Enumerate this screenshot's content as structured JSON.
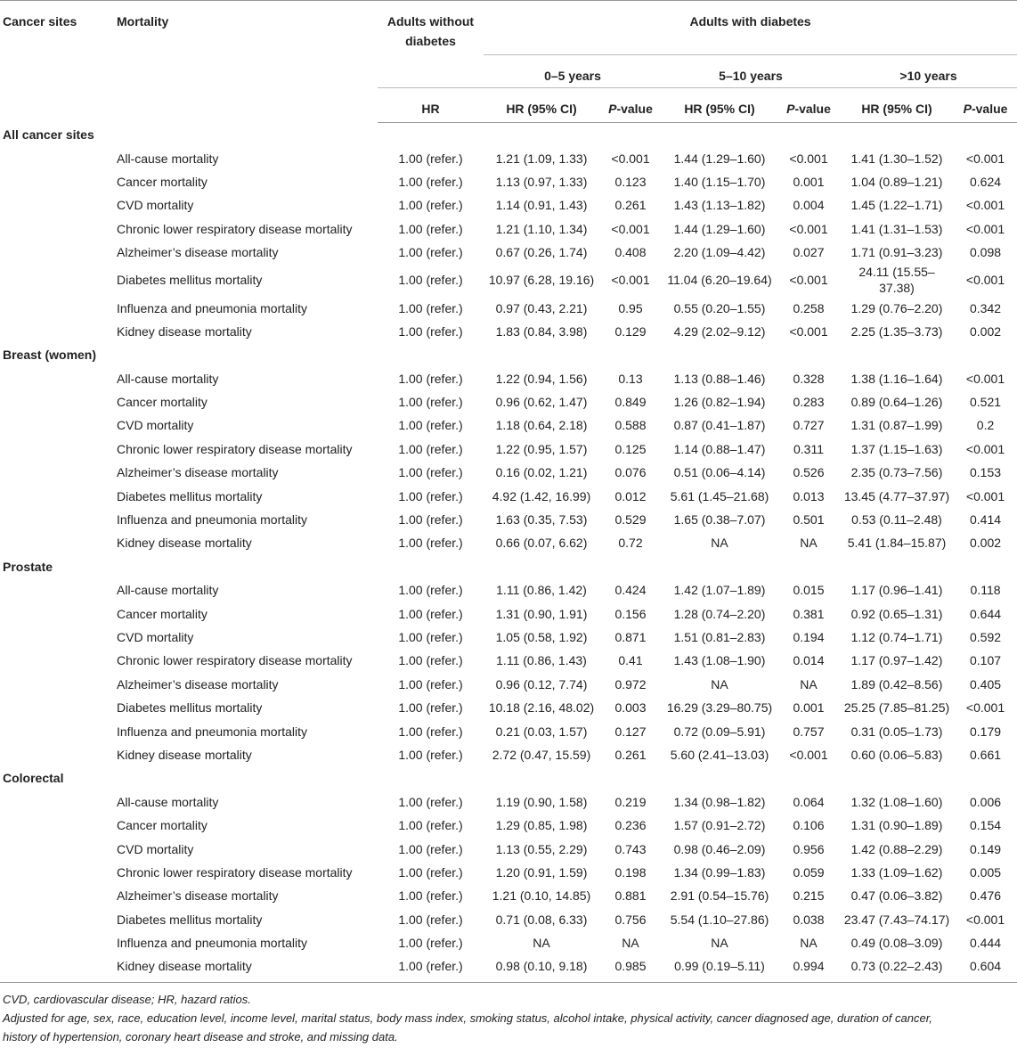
{
  "header": {
    "cancer_sites": "Cancer sites",
    "mortality": "Mortality",
    "without": "Adults without diabetes",
    "with": "Adults with diabetes",
    "periods": [
      "0–5 years",
      "5–10 years",
      ">10 years"
    ],
    "hr": "HR",
    "subcols": [
      "HR (95% CI)",
      "P-value",
      "HR (95% CI)",
      "P-value",
      "HR (95% CI)",
      "P-value"
    ]
  },
  "sections": [
    {
      "title": "All cancer sites",
      "rows": [
        [
          "All-cause mortality",
          "1.00 (refer.)",
          "1.21 (1.09, 1.33)",
          "<0.001",
          "1.44 (1.29–1.60)",
          "<0.001",
          "1.41 (1.30–1.52)",
          "<0.001"
        ],
        [
          "Cancer mortality",
          "1.00 (refer.)",
          "1.13 (0.97, 1.33)",
          "0.123",
          "1.40 (1.15–1.70)",
          "0.001",
          "1.04 (0.89–1.21)",
          "0.624"
        ],
        [
          "CVD mortality",
          "1.00 (refer.)",
          "1.14 (0.91, 1.43)",
          "0.261",
          "1.43 (1.13–1.82)",
          "0.004",
          "1.45 (1.22–1.71)",
          "<0.001"
        ],
        [
          "Chronic lower respiratory disease mortality",
          "1.00 (refer.)",
          "1.21 (1.10, 1.34)",
          "<0.001",
          "1.44 (1.29–1.60)",
          "<0.001",
          "1.41 (1.31–1.53)",
          "<0.001"
        ],
        [
          "Alzheimer’s disease mortality",
          "1.00 (refer.)",
          "0.67 (0.26, 1.74)",
          "0.408",
          "2.20 (1.09–4.42)",
          "0.027",
          "1.71 (0.91–3.23)",
          "0.098"
        ],
        [
          "Diabetes mellitus mortality",
          "1.00 (refer.)",
          "10.97 (6.28, 19.16)",
          "<0.001",
          "11.04 (6.20–19.64)",
          "<0.001",
          "24.11 (15.55–37.38)",
          "<0.001"
        ],
        [
          "Influenza and pneumonia mortality",
          "1.00 (refer.)",
          "0.97 (0.43, 2.21)",
          "0.95",
          "0.55 (0.20–1.55)",
          "0.258",
          "1.29 (0.76–2.20)",
          "0.342"
        ],
        [
          "Kidney disease mortality",
          "1.00 (refer.)",
          "1.83 (0.84, 3.98)",
          "0.129",
          "4.29 (2.02–9.12)",
          "<0.001",
          "2.25 (1.35–3.73)",
          "0.002"
        ]
      ]
    },
    {
      "title": "Breast (women)",
      "rows": [
        [
          "All-cause mortality",
          "1.00 (refer.)",
          "1.22 (0.94, 1.56)",
          "0.13",
          "1.13 (0.88–1.46)",
          "0.328",
          "1.38 (1.16–1.64)",
          "<0.001"
        ],
        [
          "Cancer mortality",
          "1.00 (refer.)",
          "0.96 (0.62, 1.47)",
          "0.849",
          "1.26 (0.82–1.94)",
          "0.283",
          "0.89 (0.64–1.26)",
          "0.521"
        ],
        [
          "CVD mortality",
          "1.00 (refer.)",
          "1.18 (0.64, 2.18)",
          "0.588",
          "0.87 (0.41–1.87)",
          "0.727",
          "1.31 (0.87–1.99)",
          "0.2"
        ],
        [
          "Chronic lower respiratory disease mortality",
          "1.00 (refer.)",
          "1.22 (0.95, 1.57)",
          "0.125",
          "1.14 (0.88–1.47)",
          "0.311",
          "1.37 (1.15–1.63)",
          "<0.001"
        ],
        [
          "Alzheimer’s disease mortality",
          "1.00 (refer.)",
          "0.16 (0.02, 1.21)",
          "0.076",
          "0.51 (0.06–4.14)",
          "0.526",
          "2.35 (0.73–7.56)",
          "0.153"
        ],
        [
          "Diabetes mellitus mortality",
          "1.00 (refer.)",
          "4.92 (1.42, 16.99)",
          "0.012",
          "5.61 (1.45–21.68)",
          "0.013",
          "13.45 (4.77–37.97)",
          "<0.001"
        ],
        [
          "Influenza and pneumonia mortality",
          "1.00 (refer.)",
          "1.63 (0.35, 7.53)",
          "0.529",
          "1.65 (0.38–7.07)",
          "0.501",
          "0.53 (0.11–2.48)",
          "0.414"
        ],
        [
          "Kidney disease mortality",
          "1.00 (refer.)",
          "0.66 (0.07, 6.62)",
          "0.72",
          "NA",
          "NA",
          "5.41 (1.84–15.87)",
          "0.002"
        ]
      ]
    },
    {
      "title": "Prostate",
      "rows": [
        [
          "All-cause mortality",
          "1.00 (refer.)",
          "1.11 (0.86, 1.42)",
          "0.424",
          "1.42 (1.07–1.89)",
          "0.015",
          "1.17 (0.96–1.41)",
          "0.118"
        ],
        [
          "Cancer mortality",
          "1.00 (refer.)",
          "1.31 (0.90, 1.91)",
          "0.156",
          "1.28 (0.74–2.20)",
          "0.381",
          "0.92 (0.65–1.31)",
          "0.644"
        ],
        [
          "CVD mortality",
          "1.00 (refer.)",
          "1.05 (0.58, 1.92)",
          "0.871",
          "1.51 (0.81–2.83)",
          "0.194",
          "1.12 (0.74–1.71)",
          "0.592"
        ],
        [
          "Chronic lower respiratory disease mortality",
          "1.00 (refer.)",
          "1.11 (0.86, 1.43)",
          "0.41",
          "1.43 (1.08–1.90)",
          "0.014",
          "1.17 (0.97–1.42)",
          "0.107"
        ],
        [
          "Alzheimer’s disease mortality",
          "1.00 (refer.)",
          "0.96 (0.12, 7.74)",
          "0.972",
          "NA",
          "NA",
          "1.89 (0.42–8.56)",
          "0.405"
        ],
        [
          "Diabetes mellitus mortality",
          "1.00 (refer.)",
          "10.18 (2.16, 48.02)",
          "0.003",
          "16.29 (3.29–80.75)",
          "0.001",
          "25.25 (7.85–81.25)",
          "<0.001"
        ],
        [
          "Influenza and pneumonia mortality",
          "1.00 (refer.)",
          "0.21 (0.03, 1.57)",
          "0.127",
          "0.72 (0.09–5.91)",
          "0.757",
          "0.31 (0.05–1.73)",
          "0.179"
        ],
        [
          "Kidney disease mortality",
          "1.00 (refer.)",
          "2.72 (0.47, 15.59)",
          "0.261",
          "5.60 (2.41–13.03)",
          "<0.001",
          "0.60 (0.06–5.83)",
          "0.661"
        ]
      ]
    },
    {
      "title": "Colorectal",
      "rows": [
        [
          "All-cause mortality",
          "1.00 (refer.)",
          "1.19 (0.90, 1.58)",
          "0.219",
          "1.34 (0.98–1.82)",
          "0.064",
          "1.32 (1.08–1.60)",
          "0.006"
        ],
        [
          "Cancer mortality",
          "1.00 (refer.)",
          "1.29 (0.85, 1.98)",
          "0.236",
          "1.57 (0.91–2.72)",
          "0.106",
          "1.31 (0.90–1.89)",
          "0.154"
        ],
        [
          "CVD mortality",
          "1.00 (refer.)",
          "1.13 (0.55, 2.29)",
          "0.743",
          "0.98 (0.46–2.09)",
          "0.956",
          "1.42 (0.88–2.29)",
          "0.149"
        ],
        [
          "Chronic lower respiratory disease mortality",
          "1.00 (refer.)",
          "1.20 (0.91, 1.59)",
          "0.198",
          "1.34 (0.99–1.83)",
          "0.059",
          "1.33 (1.09–1.62)",
          "0.005"
        ],
        [
          "Alzheimer’s disease mortality",
          "1.00 (refer.)",
          "1.21 (0.10, 14.85)",
          "0.881",
          "2.91 (0.54–15.76)",
          "0.215",
          "0.47 (0.06–3.82)",
          "0.476"
        ],
        [
          "Diabetes mellitus mortality",
          "1.00 (refer.)",
          "0.71 (0.08, 6.33)",
          "0.756",
          "5.54 (1.10–27.86)",
          "0.038",
          "23.47 (7.43–74.17)",
          "<0.001"
        ],
        [
          "Influenza and pneumonia mortality",
          "1.00 (refer.)",
          "NA",
          "NA",
          "NA",
          "NA",
          "0.49 (0.08–3.09)",
          "0.444"
        ],
        [
          "Kidney disease mortality",
          "1.00 (refer.)",
          "0.98 (0.10, 9.18)",
          "0.985",
          "0.99 (0.19–5.11)",
          "0.994",
          "0.73 (0.22–2.43)",
          "0.604"
        ]
      ]
    }
  ],
  "footnotes": [
    "CVD, cardiovascular disease; HR, hazard ratios.",
    "Adjusted for age, sex, race, education level, income level, marital status, body mass index, smoking status, alcohol intake, physical activity, cancer diagnosed age, duration of cancer,",
    "history of hypertension, coronary heart disease and stroke, and missing data."
  ]
}
